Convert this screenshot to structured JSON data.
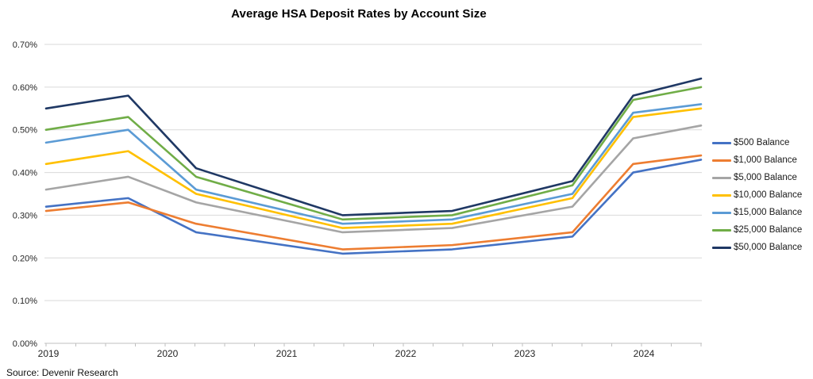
{
  "title": "Average HSA Deposit Rates by Account Size",
  "source": "Source: Devenir Research",
  "colors": {
    "gridline": "#d9d9d9",
    "axis_line": "#bfbfbf",
    "axis_text": "#262626",
    "title_text": "#000000",
    "background": "#ffffff"
  },
  "chart_data": {
    "type": "line",
    "title": "Average HSA Deposit Rates by Account Size",
    "xlabel": "",
    "ylabel": "",
    "grid": "horizontal",
    "legend_position": "right",
    "xlim": [
      2018.98,
      2024.55
    ],
    "ylim": [
      0,
      0.7
    ],
    "x_ticks": [
      2019,
      2020,
      2021,
      2022,
      2023,
      2024
    ],
    "x_minor_tick_step_years": 0.25,
    "y_ticks": [
      "0.00%",
      "0.10%",
      "0.20%",
      "0.30%",
      "0.40%",
      "0.50%",
      "0.60%",
      "0.70%"
    ],
    "y_tick_values": [
      0,
      0.1,
      0.2,
      0.3,
      0.4,
      0.5,
      0.6,
      0.7
    ],
    "y_unit": "percent",
    "x": [
      2019.0,
      2019.69,
      2020.26,
      2021.49,
      2022.41,
      2023.42,
      2023.93,
      2024.5
    ],
    "series": [
      {
        "name": "$500 Balance",
        "color": "#4472C4",
        "values": [
          0.32,
          0.34,
          0.26,
          0.21,
          0.22,
          0.25,
          0.4,
          0.43
        ]
      },
      {
        "name": "$1,000 Balance",
        "color": "#ED7D31",
        "values": [
          0.31,
          0.33,
          0.28,
          0.22,
          0.23,
          0.26,
          0.42,
          0.44
        ]
      },
      {
        "name": "$5,000 Balance",
        "color": "#A5A5A5",
        "values": [
          0.36,
          0.39,
          0.33,
          0.26,
          0.27,
          0.32,
          0.48,
          0.51
        ]
      },
      {
        "name": "$10,000 Balance",
        "color": "#FFC000",
        "values": [
          0.42,
          0.45,
          0.35,
          0.27,
          0.28,
          0.34,
          0.53,
          0.55
        ]
      },
      {
        "name": "$15,000 Balance",
        "color": "#5B9BD5",
        "values": [
          0.47,
          0.5,
          0.36,
          0.28,
          0.29,
          0.35,
          0.54,
          0.56
        ]
      },
      {
        "name": "$25,000 Balance",
        "color": "#70AD47",
        "values": [
          0.5,
          0.53,
          0.39,
          0.29,
          0.3,
          0.37,
          0.57,
          0.6
        ]
      },
      {
        "name": "$50,000 Balance",
        "color": "#1F3864",
        "values": [
          0.55,
          0.58,
          0.41,
          0.3,
          0.31,
          0.38,
          0.58,
          0.62
        ]
      }
    ]
  }
}
